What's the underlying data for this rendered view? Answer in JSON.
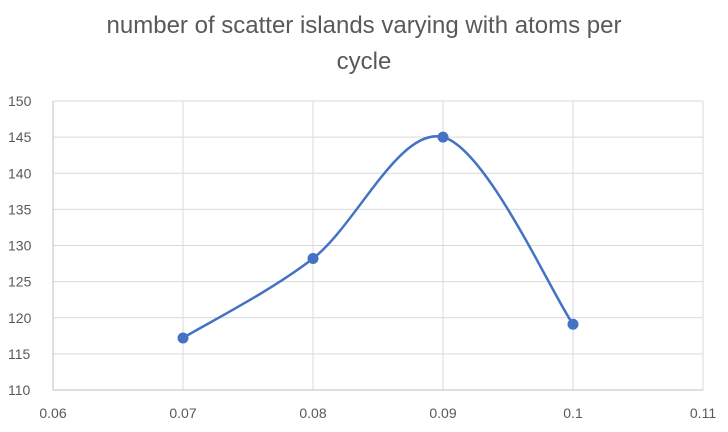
{
  "chart_data": {
    "type": "scatter",
    "title_lines": [
      "number of scatter islands varying with atoms per",
      "cycle"
    ],
    "x": [
      0.07,
      0.08,
      0.09,
      0.1
    ],
    "y": [
      117.2,
      128.2,
      145,
      119.1
    ],
    "xlim": [
      0.06,
      0.11
    ],
    "ylim": [
      110,
      150
    ],
    "x_ticks": [
      0.06,
      0.07,
      0.08,
      0.09,
      0.1,
      0.11
    ],
    "x_tick_labels": [
      "0.06",
      "0.07",
      "0.08",
      "0.09",
      "0.1",
      "0.11"
    ],
    "y_ticks": [
      110,
      115,
      120,
      125,
      130,
      135,
      140,
      145,
      150
    ],
    "y_tick_labels": [
      "110",
      "115",
      "120",
      "125",
      "130",
      "135",
      "140",
      "145",
      "150"
    ],
    "smooth_line": true,
    "grid": true,
    "legend": "none",
    "series_color": "#4472C4",
    "grid_color": "#D9D9D9",
    "text_color": "#595959"
  }
}
